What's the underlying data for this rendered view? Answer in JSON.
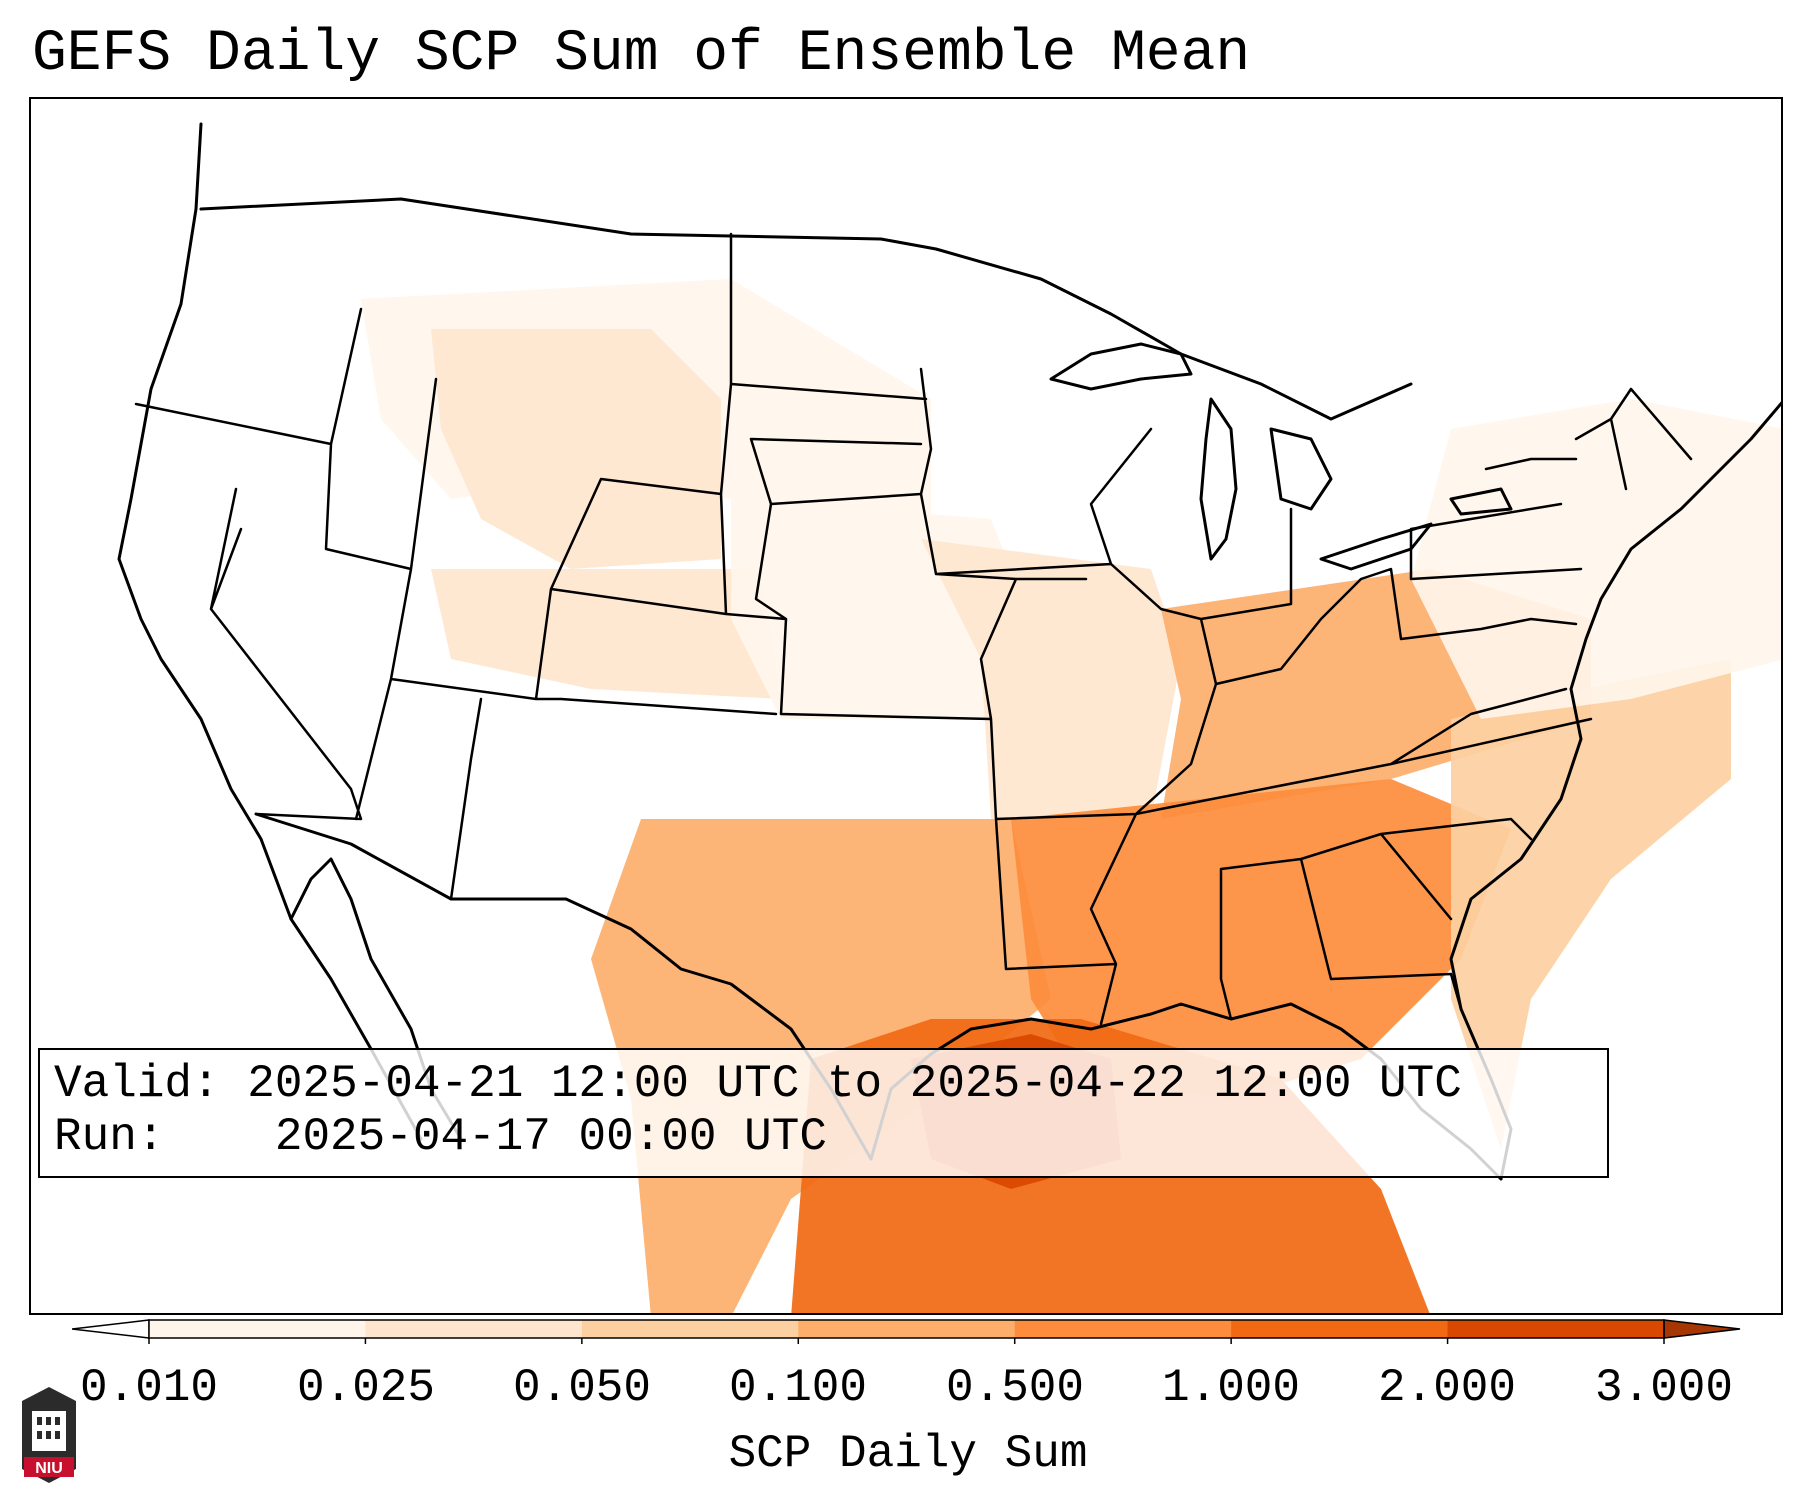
{
  "title": "GEFS Daily SCP Sum of Ensemble Mean",
  "info_box": {
    "valid_label": "Valid:",
    "valid_value": "2025-04-21 12:00 UTC to 2025-04-22 12:00 UTC",
    "run_label": "Run:",
    "run_value": "2025-04-17 00:00 UTC"
  },
  "colorbar": {
    "label": "SCP Daily Sum",
    "ticks": [
      "0.010",
      "0.025",
      "0.050",
      "0.100",
      "0.500",
      "1.000",
      "2.000",
      "3.000"
    ],
    "colors": [
      "#fff5eb",
      "#fee6ce",
      "#fdd0a2",
      "#fdae6b",
      "#fd8d3c",
      "#f16913",
      "#d94801"
    ],
    "extend": "both"
  },
  "logo": {
    "text": "NIU",
    "colors": {
      "dark": "#2b2b2b",
      "red": "#c8102e"
    }
  },
  "colors": {
    "lightest": "#fff5eb",
    "light": "#fee6ce",
    "pale": "#fdd0a2",
    "medium": "#fdae6b",
    "strong": "#fd8d3c",
    "intense": "#f16913",
    "extreme": "#d94801"
  },
  "map_regions": [
    {
      "name": "northern-rockies-plains",
      "level": "lightest"
    },
    {
      "name": "montana-wyoming",
      "level": "light"
    },
    {
      "name": "colorado-utah",
      "level": "light"
    },
    {
      "name": "central-plains",
      "level": "lightest"
    },
    {
      "name": "mid-mississippi",
      "level": "light"
    },
    {
      "name": "ohio-valley-mid-atlantic",
      "level": "medium"
    },
    {
      "name": "southern-plains",
      "level": "medium"
    },
    {
      "name": "deep-south",
      "level": "strong"
    },
    {
      "name": "gulf-of-mexico",
      "level": "intense"
    },
    {
      "name": "western-gulf-core",
      "level": "extreme"
    },
    {
      "name": "atlantic-coast-band",
      "level": "pale"
    },
    {
      "name": "northeast-fringe",
      "level": "lightest"
    }
  ]
}
